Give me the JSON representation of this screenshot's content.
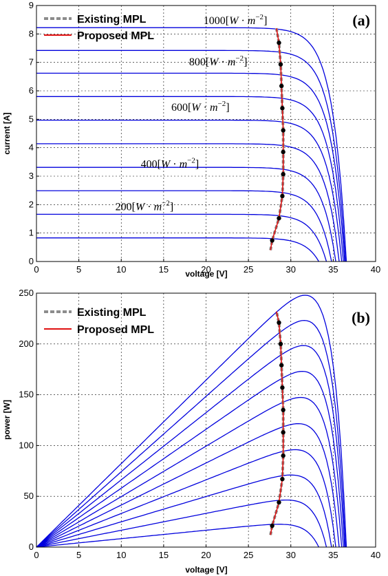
{
  "chart_data": [
    {
      "type": "line",
      "panel_tag": "(a)",
      "xlabel": "voltage [V]",
      "ylabel": "current [A]",
      "xlim": [
        0,
        40
      ],
      "ylim": [
        0,
        9
      ],
      "xticks": [
        "0",
        "5",
        "10",
        "15",
        "20",
        "25",
        "30",
        "35",
        "40"
      ],
      "yticks": [
        "0",
        "1",
        "2",
        "3",
        "4",
        "5",
        "6",
        "7",
        "8",
        "9"
      ],
      "grid": true,
      "legend": {
        "placement": "top-left",
        "entries": [
          {
            "label": "Existing MPL",
            "color": "#8c8c8c",
            "style": "dashed"
          },
          {
            "label": "Proposed MPL",
            "color": "#e01010",
            "style": "solid"
          }
        ]
      },
      "series_color": "#0000dd",
      "irradiance_labels": [
        {
          "value": "1000",
          "x": 19.7,
          "y": 8.35
        },
        {
          "value": "800",
          "x": 18.0,
          "y": 6.9
        },
        {
          "value": "600",
          "x": 15.9,
          "y": 5.3
        },
        {
          "value": "400",
          "x": 12.3,
          "y": 3.3
        },
        {
          "value": "200",
          "x": 9.3,
          "y": 1.8
        }
      ],
      "irradiance_unit": {
        "open": "[",
        "sym1": "W",
        "dot": " · ",
        "sym2": "m",
        "sup": "−2",
        "close": "]"
      },
      "isc": [
        0.83,
        1.66,
        2.49,
        3.31,
        4.14,
        4.97,
        5.8,
        6.62,
        7.42,
        8.22
      ],
      "voc": [
        33.3,
        34.2,
        34.8,
        35.3,
        35.7,
        36.0,
        36.2,
        36.35,
        36.45,
        36.55
      ],
      "mpp": [
        {
          "x": 27.8,
          "y": 0.74
        },
        {
          "x": 28.6,
          "y": 1.52
        },
        {
          "x": 29.0,
          "y": 2.3
        },
        {
          "x": 29.1,
          "y": 3.07
        },
        {
          "x": 29.1,
          "y": 3.85
        },
        {
          "x": 29.1,
          "y": 4.61
        },
        {
          "x": 29.0,
          "y": 5.39
        },
        {
          "x": 28.9,
          "y": 6.17
        },
        {
          "x": 28.8,
          "y": 6.93
        },
        {
          "x": 28.6,
          "y": 7.69
        }
      ],
      "mpl_line": [
        {
          "x": 27.6,
          "y": 0.4
        },
        {
          "x": 27.8,
          "y": 0.74
        },
        {
          "x": 28.6,
          "y": 1.52
        },
        {
          "x": 29.0,
          "y": 2.3
        },
        {
          "x": 29.1,
          "y": 3.07
        },
        {
          "x": 29.1,
          "y": 3.85
        },
        {
          "x": 29.1,
          "y": 4.61
        },
        {
          "x": 29.0,
          "y": 5.39
        },
        {
          "x": 28.9,
          "y": 6.17
        },
        {
          "x": 28.8,
          "y": 6.93
        },
        {
          "x": 28.6,
          "y": 7.69
        },
        {
          "x": 28.3,
          "y": 8.2
        }
      ]
    },
    {
      "type": "line",
      "panel_tag": "(b)",
      "xlabel": "voltage [V]",
      "ylabel": "power [W]",
      "xlim": [
        0,
        40
      ],
      "ylim": [
        0,
        250
      ],
      "xticks": [
        "0",
        "5",
        "10",
        "15",
        "20",
        "25",
        "30",
        "35",
        "40"
      ],
      "yticks": [
        "0",
        "50",
        "100",
        "150",
        "200",
        "250"
      ],
      "grid": true,
      "legend": {
        "placement": "top-left",
        "entries": [
          {
            "label": "Existing MPL",
            "color": "#8c8c8c",
            "style": "dashed"
          },
          {
            "label": "Proposed MPL",
            "color": "#e01010",
            "style": "solid"
          }
        ]
      },
      "series_color": "#0000dd",
      "mpp": [
        {
          "x": 27.8,
          "y": 21
        },
        {
          "x": 28.6,
          "y": 44
        },
        {
          "x": 29.0,
          "y": 67
        },
        {
          "x": 29.1,
          "y": 90
        },
        {
          "x": 29.1,
          "y": 113
        },
        {
          "x": 29.1,
          "y": 135
        },
        {
          "x": 29.0,
          "y": 157
        },
        {
          "x": 28.9,
          "y": 179
        },
        {
          "x": 28.8,
          "y": 200
        },
        {
          "x": 28.6,
          "y": 221
        }
      ],
      "mpl_line": [
        {
          "x": 27.6,
          "y": 12
        },
        {
          "x": 27.8,
          "y": 21
        },
        {
          "x": 28.6,
          "y": 44
        },
        {
          "x": 29.0,
          "y": 67
        },
        {
          "x": 29.1,
          "y": 90
        },
        {
          "x": 29.1,
          "y": 113
        },
        {
          "x": 29.1,
          "y": 135
        },
        {
          "x": 29.0,
          "y": 157
        },
        {
          "x": 28.9,
          "y": 179
        },
        {
          "x": 28.8,
          "y": 200
        },
        {
          "x": 28.6,
          "y": 221
        },
        {
          "x": 28.3,
          "y": 232
        }
      ]
    }
  ]
}
